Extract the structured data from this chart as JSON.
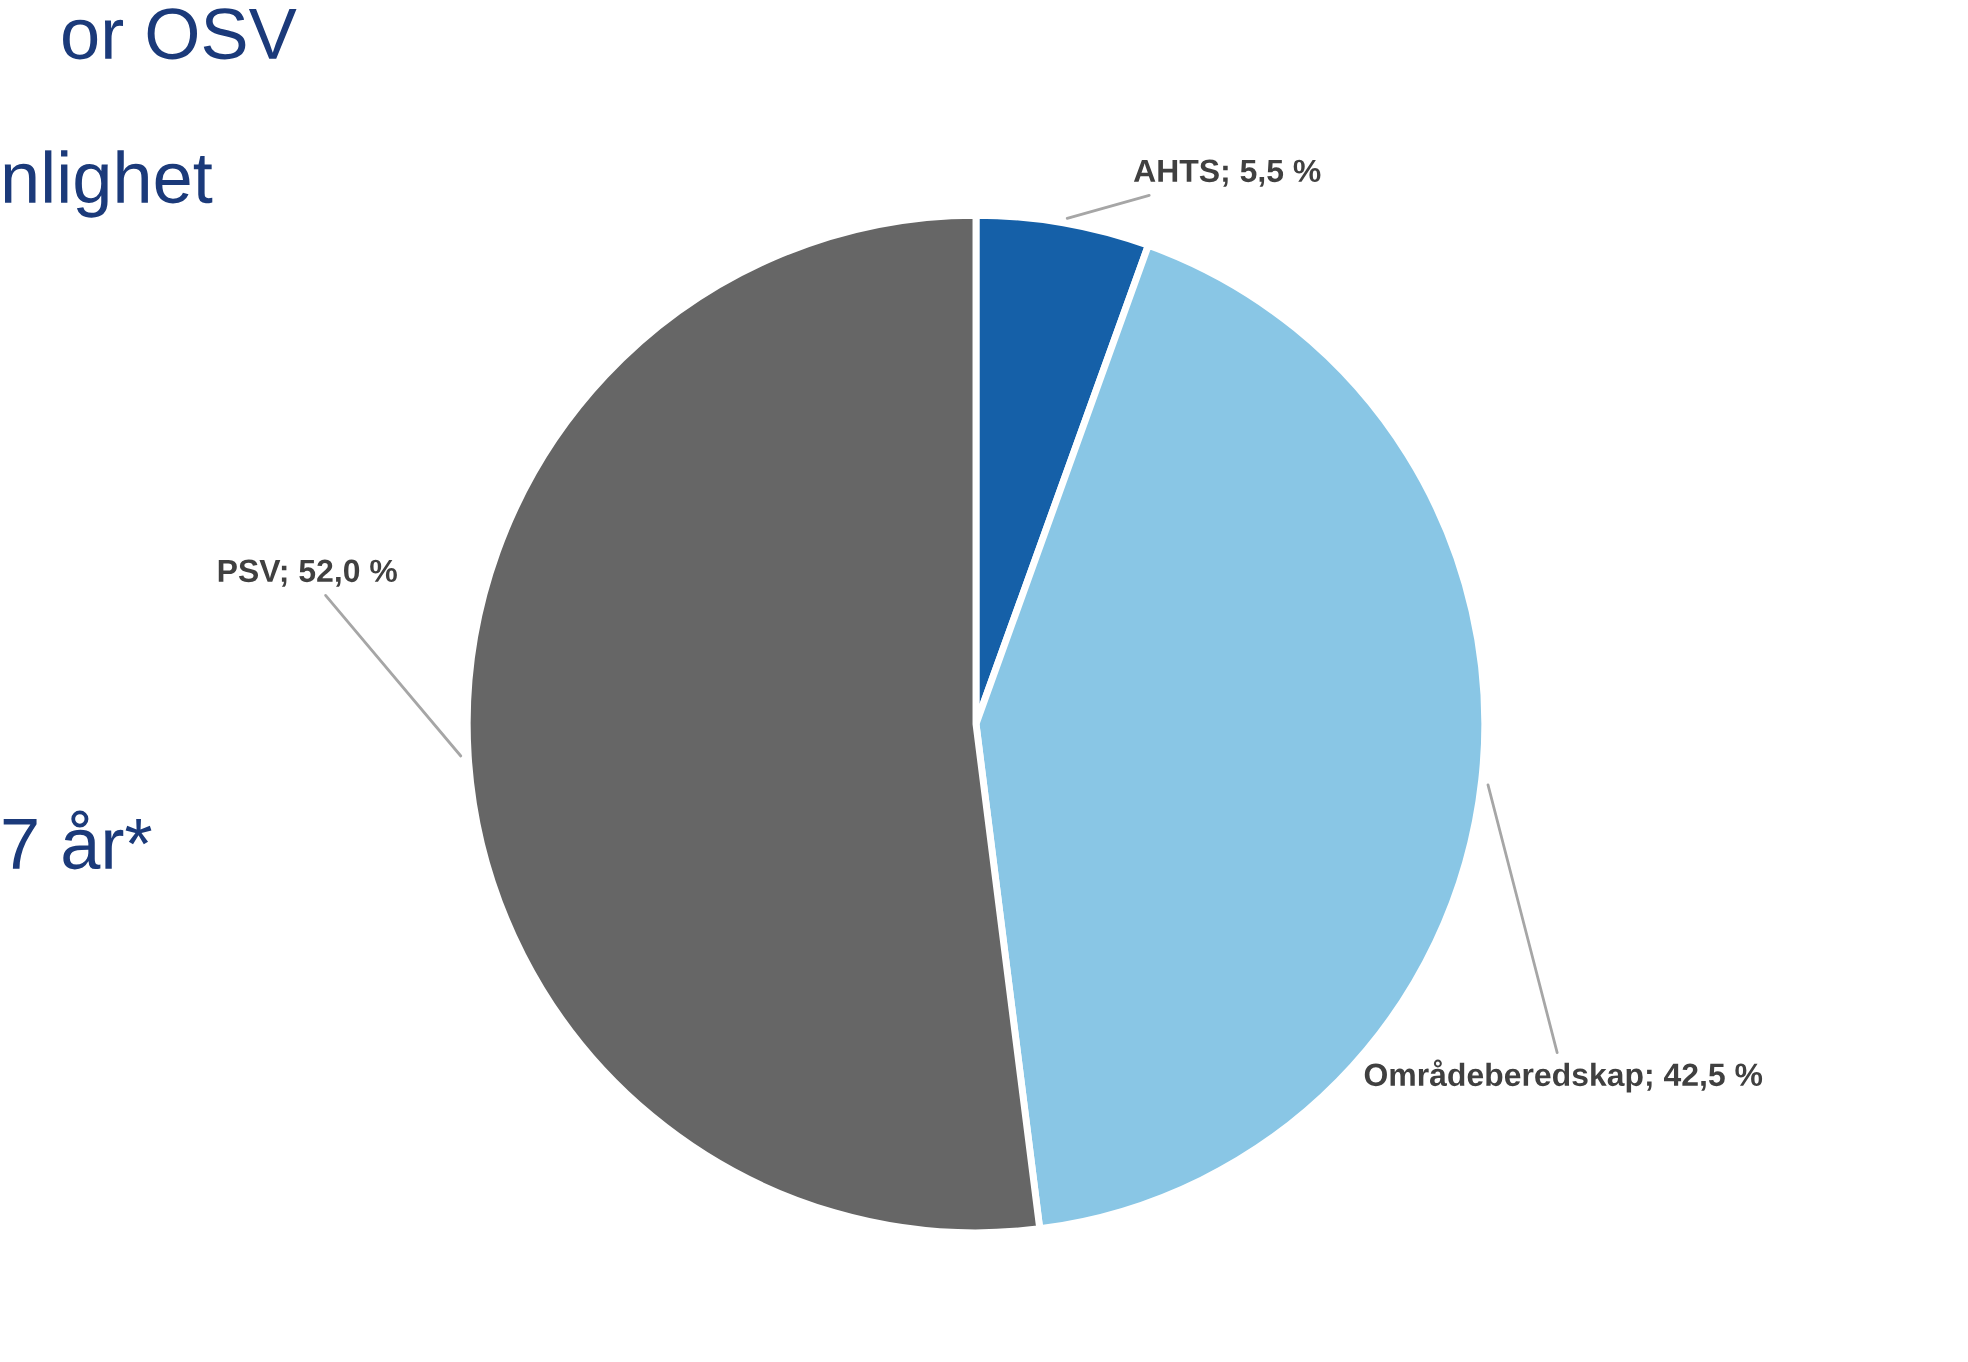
{
  "chart_data": {
    "type": "pie",
    "categories": [
      "AHTS",
      "Områdeberedskap",
      "PSV"
    ],
    "values": [
      5.5,
      42.5,
      52.0
    ],
    "colors": [
      "#1560a8",
      "#89c6e5",
      "#666666"
    ],
    "value_labels": [
      "5,5 %",
      "42,5 %",
      "52,0 %"
    ],
    "annotations": [
      "or OSV",
      "nlighet",
      "7 år*"
    ]
  }
}
